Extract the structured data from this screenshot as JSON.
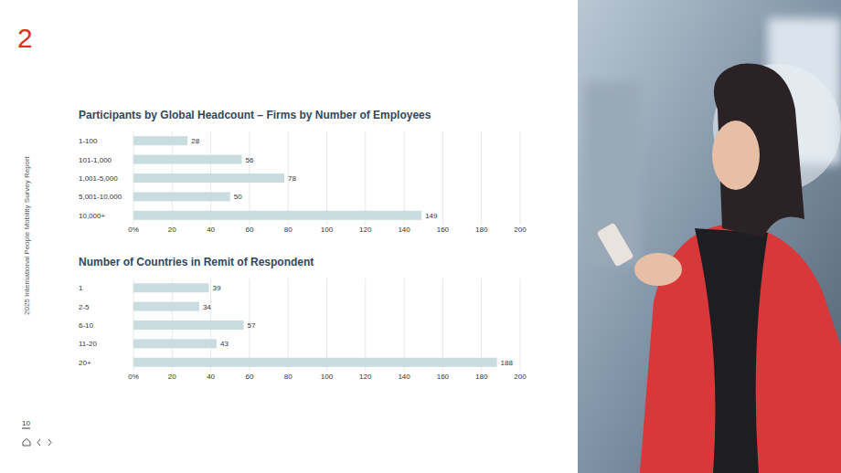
{
  "page": {
    "section": "2",
    "report_title": "2025 International People Mobility Survey Report",
    "page_number": "10"
  },
  "chart_data": [
    {
      "type": "bar",
      "orientation": "horizontal",
      "title": "Participants by Global Headcount – Firms by Number of Employees",
      "categories": [
        "1-100",
        "101-1,000",
        "1,001-5,000",
        "5,001-10,000",
        "10,000+"
      ],
      "values": [
        28,
        56,
        78,
        50,
        149
      ],
      "color": "#c9dcdf",
      "xlim": [
        0,
        200
      ],
      "xticks": [
        {
          "value": 0,
          "label": "0%"
        },
        20,
        40,
        60,
        80,
        100,
        120,
        140,
        160,
        180,
        200
      ],
      "grid": true,
      "data_labels": true
    },
    {
      "type": "bar",
      "orientation": "horizontal",
      "title": "Number of Countries in Remit of Respondent",
      "categories": [
        "1",
        "2-5",
        "6-10",
        "11-20",
        "20+"
      ],
      "values": [
        39,
        34,
        57,
        43,
        188
      ],
      "color": "#c9dcdf",
      "xlim": [
        0,
        200
      ],
      "xticks": [
        {
          "value": 0,
          "label": "0%"
        },
        20,
        40,
        60,
        80,
        100,
        120,
        140,
        160,
        180,
        200
      ],
      "grid": true,
      "data_labels": true
    }
  ]
}
